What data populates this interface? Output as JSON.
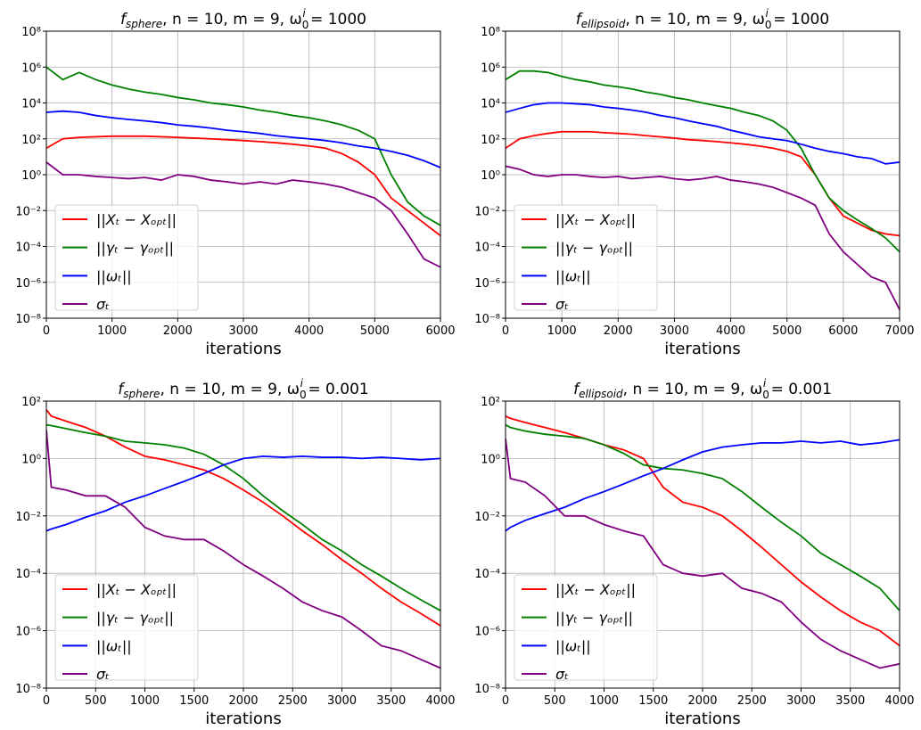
{
  "chart_data": [
    {
      "type": "line",
      "title": {
        "f": "f",
        "fsub": "sphere",
        "mid": ", n = 10, m = 9, ω",
        "wsub": "0",
        "wsup": "i",
        "end": " = 1000"
      },
      "xlabel": "iterations",
      "log_y": true,
      "grid": true,
      "legend": "lower left",
      "xlim": [
        0,
        6000
      ],
      "xticks": [
        0,
        1000,
        2000,
        3000,
        4000,
        5000,
        6000
      ],
      "ylim": [
        1e-08,
        100000000.0
      ],
      "yticks": [
        {
          "value": 1e-08,
          "label": "10⁻⁸"
        },
        {
          "value": 1e-06,
          "label": "10⁻⁶"
        },
        {
          "value": 0.0001,
          "label": "10⁻⁴"
        },
        {
          "value": 0.01,
          "label": "10⁻²"
        },
        {
          "value": 1,
          "label": "10⁰"
        },
        {
          "value": 100,
          "label": "10²"
        },
        {
          "value": 10000,
          "label": "10⁴"
        },
        {
          "value": 1000000,
          "label": "10⁶"
        },
        {
          "value": 100000000,
          "label": "10⁸"
        }
      ],
      "x": [
        0,
        250,
        500,
        750,
        1000,
        1250,
        1500,
        1750,
        2000,
        2250,
        2500,
        2750,
        3000,
        3250,
        3500,
        3750,
        4000,
        4250,
        4500,
        4750,
        5000,
        5250,
        5500,
        5750,
        6000
      ],
      "series": [
        {
          "name": "||Xₜ − Xₒₚₜ||",
          "color": "#ff0000",
          "values": [
            30,
            100,
            120,
            130,
            140,
            140,
            140,
            130,
            120,
            110,
            100,
            90,
            80,
            70,
            60,
            50,
            40,
            30,
            15,
            5,
            1,
            0.05,
            0.01,
            0.002,
            0.0004
          ]
        },
        {
          "name": "||γₜ − γₒₚₜ||",
          "color": "#008000",
          "values": [
            1000000,
            200000,
            500000,
            200000,
            100000,
            60000,
            40000,
            30000,
            20000,
            15000,
            10000,
            8000,
            6000,
            4000,
            3000,
            2000,
            1500,
            1000,
            600,
            300,
            100,
            1,
            0.03,
            0.005,
            0.0015
          ]
        },
        {
          "name": "||ωₜ||",
          "color": "#0000ff",
          "values": [
            3000,
            3500,
            3000,
            2000,
            1500,
            1200,
            1000,
            800,
            600,
            500,
            400,
            300,
            250,
            200,
            150,
            120,
            100,
            80,
            60,
            40,
            30,
            20,
            12,
            6,
            2.5
          ]
        },
        {
          "name": "σₜ",
          "color": "#800080",
          "values": [
            5,
            1,
            1,
            0.8,
            0.7,
            0.6,
            0.7,
            0.5,
            1,
            0.8,
            0.5,
            0.4,
            0.3,
            0.4,
            0.3,
            0.5,
            0.4,
            0.3,
            0.2,
            0.1,
            0.05,
            0.01,
            0.0005,
            2e-05,
            7e-06
          ]
        }
      ]
    },
    {
      "type": "line",
      "title": {
        "f": "f",
        "fsub": "ellipsoid",
        "mid": ", n = 10, m = 9, ω",
        "wsub": "0",
        "wsup": "i",
        "end": " = 1000"
      },
      "xlabel": "iterations",
      "log_y": true,
      "grid": true,
      "legend": "lower left",
      "xlim": [
        0,
        7000
      ],
      "xticks": [
        0,
        1000,
        2000,
        3000,
        4000,
        5000,
        6000,
        7000
      ],
      "ylim": [
        1e-08,
        100000000.0
      ],
      "yticks": [
        {
          "value": 1e-08,
          "label": "10⁻⁸"
        },
        {
          "value": 1e-06,
          "label": "10⁻⁶"
        },
        {
          "value": 0.0001,
          "label": "10⁻⁴"
        },
        {
          "value": 0.01,
          "label": "10⁻²"
        },
        {
          "value": 1,
          "label": "10⁰"
        },
        {
          "value": 100,
          "label": "10²"
        },
        {
          "value": 10000,
          "label": "10⁴"
        },
        {
          "value": 1000000,
          "label": "10⁶"
        },
        {
          "value": 100000000,
          "label": "10⁸"
        }
      ],
      "x": [
        0,
        250,
        500,
        750,
        1000,
        1250,
        1500,
        1750,
        2000,
        2250,
        2500,
        2750,
        3000,
        3250,
        3500,
        3750,
        4000,
        4250,
        4500,
        4750,
        5000,
        5250,
        5500,
        5750,
        6000,
        6250,
        6500,
        6750,
        7000
      ],
      "series": [
        {
          "name": "||Xₜ − Xₒₚₜ||",
          "color": "#ff0000",
          "values": [
            30,
            100,
            150,
            200,
            250,
            250,
            250,
            220,
            200,
            180,
            150,
            130,
            110,
            90,
            80,
            70,
            60,
            50,
            40,
            30,
            20,
            10,
            1,
            0.05,
            0.005,
            0.002,
            0.0008,
            0.0005,
            0.0004
          ]
        },
        {
          "name": "||γₜ − γₒₚₜ||",
          "color": "#008000",
          "values": [
            200000,
            600000,
            600000,
            500000,
            300000,
            200000,
            150000,
            100000,
            80000,
            60000,
            40000,
            30000,
            20000,
            15000,
            10000,
            7000,
            5000,
            3000,
            2000,
            1000,
            300,
            30,
            1,
            0.05,
            0.01,
            0.003,
            0.001,
            0.0003,
            5e-05
          ]
        },
        {
          "name": "||ωₜ||",
          "color": "#0000ff",
          "values": [
            3000,
            5000,
            8000,
            10000,
            10000,
            9000,
            8000,
            6000,
            5000,
            4000,
            3000,
            2000,
            1500,
            1000,
            700,
            500,
            300,
            200,
            130,
            100,
            80,
            50,
            30,
            20,
            15,
            10,
            8,
            4,
            5
          ]
        },
        {
          "name": "σₜ",
          "color": "#800080",
          "values": [
            3,
            2,
            1,
            0.8,
            1,
            1,
            0.8,
            0.7,
            0.8,
            0.6,
            0.7,
            0.8,
            0.6,
            0.5,
            0.6,
            0.8,
            0.5,
            0.4,
            0.3,
            0.2,
            0.1,
            0.05,
            0.02,
            0.0005,
            5e-05,
            1e-05,
            2e-06,
            1e-06,
            3e-08
          ]
        }
      ]
    },
    {
      "type": "line",
      "title": {
        "f": "f",
        "fsub": "sphere",
        "mid": ", n = 10, m = 9, ω",
        "wsub": "0",
        "wsup": "i",
        "end": " = 0.001"
      },
      "xlabel": "iterations",
      "log_y": true,
      "grid": true,
      "legend": "lower left",
      "xlim": [
        0,
        4000
      ],
      "xticks": [
        0,
        500,
        1000,
        1500,
        2000,
        2500,
        3000,
        3500,
        4000
      ],
      "ylim": [
        1e-08,
        100
      ],
      "yticks": [
        {
          "value": 1e-08,
          "label": "10⁻⁸"
        },
        {
          "value": 1e-06,
          "label": "10⁻⁶"
        },
        {
          "value": 0.0001,
          "label": "10⁻⁴"
        },
        {
          "value": 0.01,
          "label": "10⁻²"
        },
        {
          "value": 1,
          "label": "10⁰"
        },
        {
          "value": 100,
          "label": "10²"
        }
      ],
      "x": [
        0,
        50,
        200,
        400,
        600,
        800,
        1000,
        1200,
        1400,
        1600,
        1800,
        2000,
        2200,
        2400,
        2600,
        2800,
        3000,
        3200,
        3400,
        3600,
        3800,
        4000
      ],
      "series": [
        {
          "name": "||Xₜ − Xₒₚₜ||",
          "color": "#ff0000",
          "values": [
            50,
            30,
            20,
            12,
            6,
            2.5,
            1.2,
            0.9,
            0.6,
            0.4,
            0.2,
            0.08,
            0.03,
            0.01,
            0.003,
            0.001,
            0.0003,
            0.0001,
            3e-05,
            1e-05,
            4e-06,
            1.5e-06
          ]
        },
        {
          "name": "||γₜ − γₒₚₜ||",
          "color": "#008000",
          "values": [
            15,
            14,
            11,
            8,
            6,
            4,
            3.5,
            3,
            2.3,
            1.4,
            0.6,
            0.2,
            0.05,
            0.015,
            0.005,
            0.0015,
            0.0006,
            0.0002,
            8e-05,
            3e-05,
            1.2e-05,
            5e-06
          ]
        },
        {
          "name": "||ωₜ||",
          "color": "#0000ff",
          "values": [
            0.003,
            0.0035,
            0.005,
            0.009,
            0.015,
            0.03,
            0.05,
            0.09,
            0.16,
            0.3,
            0.6,
            1,
            1.2,
            1.1,
            1.2,
            1.1,
            1.1,
            1.0,
            1.1,
            1.0,
            0.9,
            1.0
          ]
        },
        {
          "name": "σₜ",
          "color": "#800080",
          "values": [
            10,
            0.1,
            0.08,
            0.05,
            0.05,
            0.02,
            0.004,
            0.002,
            0.0015,
            0.0015,
            0.0006,
            0.0002,
            8e-05,
            3e-05,
            1e-05,
            5e-06,
            3e-06,
            1e-06,
            3e-07,
            2e-07,
            1e-07,
            5e-08
          ]
        }
      ]
    },
    {
      "type": "line",
      "title": {
        "f": "f",
        "fsub": "ellipsoid",
        "mid": ", n = 10, m = 9, ω",
        "wsub": "0",
        "wsup": "i",
        "end": " = 0.001"
      },
      "xlabel": "iterations",
      "log_y": true,
      "grid": true,
      "legend": "lower left",
      "xlim": [
        0,
        4000
      ],
      "xticks": [
        0,
        500,
        1000,
        1500,
        2000,
        2500,
        3000,
        3500,
        4000
      ],
      "ylim": [
        1e-08,
        100
      ],
      "yticks": [
        {
          "value": 1e-08,
          "label": "10⁻⁸"
        },
        {
          "value": 1e-06,
          "label": "10⁻⁶"
        },
        {
          "value": 0.0001,
          "label": "10⁻⁴"
        },
        {
          "value": 0.01,
          "label": "10⁻²"
        },
        {
          "value": 1,
          "label": "10⁰"
        },
        {
          "value": 100,
          "label": "10²"
        }
      ],
      "x": [
        0,
        50,
        200,
        400,
        600,
        800,
        1000,
        1200,
        1400,
        1600,
        1800,
        2000,
        2200,
        2400,
        2600,
        2800,
        3000,
        3200,
        3400,
        3600,
        3800,
        4000
      ],
      "series": [
        {
          "name": "||Xₜ − Xₒₚₜ||",
          "color": "#ff0000",
          "values": [
            30,
            25,
            18,
            12,
            8,
            5,
            3,
            2,
            1,
            0.1,
            0.03,
            0.02,
            0.01,
            0.003,
            0.0008,
            0.0002,
            5e-05,
            1.5e-05,
            5e-06,
            2e-06,
            1e-06,
            3e-07
          ]
        },
        {
          "name": "||γₜ − γₒₚₜ||",
          "color": "#008000",
          "values": [
            15,
            12,
            9,
            7,
            6,
            5,
            3,
            1.5,
            0.6,
            0.45,
            0.4,
            0.3,
            0.2,
            0.07,
            0.02,
            0.006,
            0.002,
            0.0005,
            0.0002,
            8e-05,
            3e-05,
            5e-06
          ]
        },
        {
          "name": "||ωₜ||",
          "color": "#0000ff",
          "values": [
            0.003,
            0.004,
            0.007,
            0.012,
            0.02,
            0.04,
            0.07,
            0.13,
            0.25,
            0.45,
            0.9,
            1.7,
            2.5,
            3,
            3.5,
            3.5,
            4,
            3.5,
            4,
            3,
            3.5,
            4.5
          ]
        },
        {
          "name": "σₜ",
          "color": "#800080",
          "values": [
            5,
            0.2,
            0.15,
            0.05,
            0.01,
            0.01,
            0.005,
            0.003,
            0.002,
            0.0002,
            0.0001,
            8e-05,
            0.0001,
            3e-05,
            2e-05,
            1e-05,
            2e-06,
            5e-07,
            2e-07,
            1e-07,
            5e-08,
            7e-08
          ]
        }
      ]
    }
  ]
}
